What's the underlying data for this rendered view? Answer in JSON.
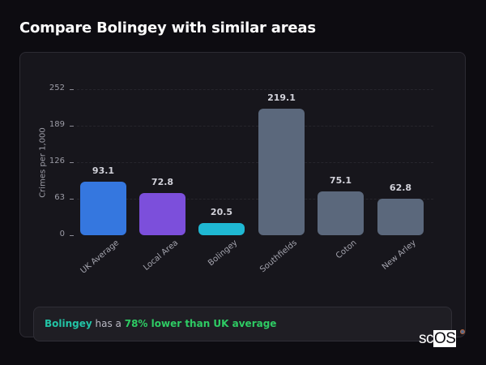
{
  "header": {
    "title": "Compare Bolingey with similar areas"
  },
  "chart_data": {
    "type": "bar",
    "title": "Compare Bolingey with similar areas",
    "xlabel": "",
    "ylabel": "Crimes per 1,000",
    "ylim": [
      0,
      252
    ],
    "yticks": [
      0,
      63,
      126,
      189,
      252
    ],
    "grid": true,
    "categories": [
      "UK Average",
      "Local Area",
      "Bolingey",
      "Southfields",
      "Coton",
      "New Arley"
    ],
    "values": [
      93.1,
      72.8,
      20.5,
      219.1,
      75.1,
      62.8
    ],
    "value_labels": [
      "93.1",
      "72.8",
      "20.5",
      "219.1",
      "75.1",
      "62.8"
    ],
    "colors": [
      "#3577df",
      "#7c4fdb",
      "#1fb8d3",
      "#5b687c",
      "#5b687c",
      "#5b687c"
    ]
  },
  "summary": {
    "area": "Bolingey",
    "mid": " has a ",
    "stat": "78% lower than UK average"
  },
  "logo": {
    "prefix": "sc",
    "highlight": "OS"
  }
}
